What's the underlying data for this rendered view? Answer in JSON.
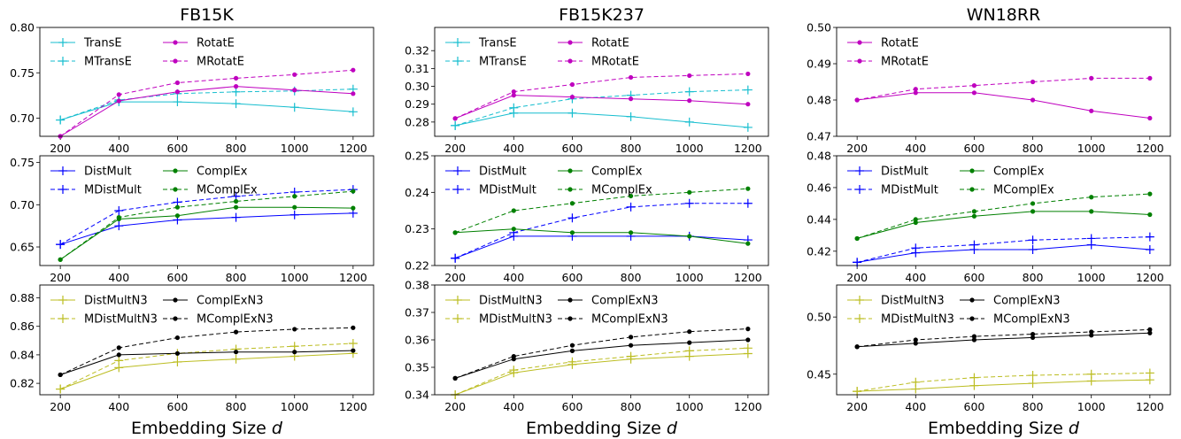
{
  "chart_data": [
    {
      "type": "line",
      "title": "FB15K",
      "xlabel": "",
      "ylabel": "",
      "x": [
        200,
        400,
        600,
        800,
        1000,
        1200
      ],
      "ylim": [
        0.68,
        0.8
      ],
      "yticks": [
        "0.70",
        "0.75",
        "0.80"
      ],
      "ytick_values": [
        0.7,
        0.75,
        0.8
      ],
      "legend_columns": 2,
      "series": [
        {
          "name": "TransE",
          "color": "#17becf",
          "dashed": false,
          "marker": "plus",
          "values": [
            0.698,
            0.718,
            0.718,
            0.716,
            0.712,
            0.707
          ]
        },
        {
          "name": "MTransE",
          "color": "#17becf",
          "dashed": true,
          "marker": "plus",
          "values": [
            0.698,
            0.72,
            0.727,
            0.729,
            0.73,
            0.732
          ]
        },
        {
          "name": "RotatE",
          "color": "#bf00bf",
          "dashed": false,
          "marker": "dot",
          "values": [
            0.68,
            0.719,
            0.729,
            0.735,
            0.731,
            0.727
          ]
        },
        {
          "name": "MRotatE",
          "color": "#bf00bf",
          "dashed": true,
          "marker": "dot",
          "values": [
            0.68,
            0.726,
            0.739,
            0.744,
            0.748,
            0.753
          ]
        }
      ]
    },
    {
      "type": "line",
      "title": "FB15K237",
      "xlabel": "",
      "ylabel": "",
      "x": [
        200,
        400,
        600,
        800,
        1000,
        1200
      ],
      "ylim": [
        0.272,
        0.333
      ],
      "yticks": [
        "0.28",
        "0.29",
        "0.30",
        "0.31",
        "0.32"
      ],
      "ytick_values": [
        0.28,
        0.29,
        0.3,
        0.31,
        0.32
      ],
      "legend_columns": 2,
      "series": [
        {
          "name": "TransE",
          "color": "#17becf",
          "dashed": false,
          "marker": "plus",
          "values": [
            0.278,
            0.285,
            0.285,
            0.283,
            0.28,
            0.277
          ]
        },
        {
          "name": "MTransE",
          "color": "#17becf",
          "dashed": true,
          "marker": "plus",
          "values": [
            0.278,
            0.288,
            0.293,
            0.295,
            0.297,
            0.298
          ]
        },
        {
          "name": "RotatE",
          "color": "#bf00bf",
          "dashed": false,
          "marker": "dot",
          "values": [
            0.282,
            0.295,
            0.294,
            0.293,
            0.292,
            0.29
          ]
        },
        {
          "name": "MRotatE",
          "color": "#bf00bf",
          "dashed": true,
          "marker": "dot",
          "values": [
            0.282,
            0.297,
            0.301,
            0.305,
            0.306,
            0.307
          ]
        }
      ]
    },
    {
      "type": "line",
      "title": "WN18RR",
      "xlabel": "",
      "ylabel": "",
      "x": [
        200,
        400,
        600,
        800,
        1000,
        1200
      ],
      "ylim": [
        0.47,
        0.5
      ],
      "yticks": [
        "0.47",
        "0.48",
        "0.49",
        "0.50"
      ],
      "ytick_values": [
        0.47,
        0.48,
        0.49,
        0.5
      ],
      "legend_columns": 1,
      "series": [
        {
          "name": "RotatE",
          "color": "#bf00bf",
          "dashed": false,
          "marker": "dot",
          "values": [
            0.48,
            0.482,
            0.482,
            0.48,
            0.477,
            0.475
          ]
        },
        {
          "name": "MRotatE",
          "color": "#bf00bf",
          "dashed": true,
          "marker": "dot",
          "values": [
            0.48,
            0.483,
            0.484,
            0.485,
            0.486,
            0.486
          ]
        }
      ]
    },
    {
      "type": "line",
      "title": "",
      "xlabel": "",
      "ylabel": "",
      "x": [
        200,
        400,
        600,
        800,
        1000,
        1200
      ],
      "ylim": [
        0.628,
        0.758
      ],
      "yticks": [
        "0.65",
        "0.70",
        "0.75"
      ],
      "ytick_values": [
        0.65,
        0.7,
        0.75
      ],
      "legend_columns": 2,
      "series": [
        {
          "name": "DistMult",
          "color": "#0000ff",
          "dashed": false,
          "marker": "plus",
          "values": [
            0.653,
            0.675,
            0.682,
            0.685,
            0.688,
            0.69
          ]
        },
        {
          "name": "MDistMult",
          "color": "#0000ff",
          "dashed": true,
          "marker": "plus",
          "values": [
            0.653,
            0.693,
            0.703,
            0.71,
            0.715,
            0.718
          ]
        },
        {
          "name": "ComplEx",
          "color": "#008000",
          "dashed": false,
          "marker": "dot",
          "values": [
            0.635,
            0.683,
            0.687,
            0.697,
            0.697,
            0.696
          ]
        },
        {
          "name": "MComplEx",
          "color": "#008000",
          "dashed": true,
          "marker": "dot",
          "values": [
            0.635,
            0.685,
            0.697,
            0.704,
            0.71,
            0.716
          ]
        }
      ]
    },
    {
      "type": "line",
      "title": "",
      "xlabel": "",
      "ylabel": "",
      "x": [
        200,
        400,
        600,
        800,
        1000,
        1200
      ],
      "ylim": [
        0.22,
        0.25
      ],
      "yticks": [
        "0.22",
        "0.23",
        "0.24",
        "0.25"
      ],
      "ytick_values": [
        0.22,
        0.23,
        0.24,
        0.25
      ],
      "legend_columns": 2,
      "series": [
        {
          "name": "DistMult",
          "color": "#0000ff",
          "dashed": false,
          "marker": "plus",
          "values": [
            0.222,
            0.228,
            0.228,
            0.228,
            0.228,
            0.227
          ]
        },
        {
          "name": "MDistMult",
          "color": "#0000ff",
          "dashed": true,
          "marker": "plus",
          "values": [
            0.222,
            0.229,
            0.233,
            0.236,
            0.237,
            0.237
          ]
        },
        {
          "name": "ComplEx",
          "color": "#008000",
          "dashed": false,
          "marker": "dot",
          "values": [
            0.229,
            0.23,
            0.229,
            0.229,
            0.228,
            0.226
          ]
        },
        {
          "name": "MComplEx",
          "color": "#008000",
          "dashed": true,
          "marker": "dot",
          "values": [
            0.229,
            0.235,
            0.237,
            0.239,
            0.24,
            0.241
          ]
        }
      ]
    },
    {
      "type": "line",
      "title": "",
      "xlabel": "",
      "ylabel": "",
      "x": [
        200,
        400,
        600,
        800,
        1000,
        1200
      ],
      "ylim": [
        0.411,
        0.48
      ],
      "yticks": [
        "0.42",
        "0.44",
        "0.46",
        "0.48"
      ],
      "ytick_values": [
        0.42,
        0.44,
        0.46,
        0.48
      ],
      "legend_columns": 2,
      "series": [
        {
          "name": "DistMult",
          "color": "#0000ff",
          "dashed": false,
          "marker": "plus",
          "values": [
            0.413,
            0.419,
            0.421,
            0.421,
            0.424,
            0.421
          ]
        },
        {
          "name": "MDistMult",
          "color": "#0000ff",
          "dashed": true,
          "marker": "plus",
          "values": [
            0.413,
            0.422,
            0.424,
            0.427,
            0.428,
            0.429
          ]
        },
        {
          "name": "ComplEx",
          "color": "#008000",
          "dashed": false,
          "marker": "dot",
          "values": [
            0.428,
            0.438,
            0.442,
            0.445,
            0.445,
            0.443
          ]
        },
        {
          "name": "MComplEx",
          "color": "#008000",
          "dashed": true,
          "marker": "dot",
          "values": [
            0.428,
            0.44,
            0.445,
            0.45,
            0.454,
            0.456
          ]
        }
      ]
    },
    {
      "type": "line",
      "title": "",
      "xlabel": "Embedding Size d",
      "ylabel": "",
      "x": [
        200,
        400,
        600,
        800,
        1000,
        1200
      ],
      "ylim": [
        0.812,
        0.889
      ],
      "yticks": [
        "0.82",
        "0.84",
        "0.86",
        "0.88"
      ],
      "ytick_values": [
        0.82,
        0.84,
        0.86,
        0.88
      ],
      "legend_columns": 2,
      "series": [
        {
          "name": "DistMultN3",
          "color": "#bcbd22",
          "dashed": false,
          "marker": "plus",
          "values": [
            0.816,
            0.831,
            0.835,
            0.837,
            0.839,
            0.841
          ]
        },
        {
          "name": "MDistMultN3",
          "color": "#bcbd22",
          "dashed": true,
          "marker": "plus",
          "values": [
            0.816,
            0.836,
            0.841,
            0.844,
            0.846,
            0.848
          ]
        },
        {
          "name": "ComplExN3",
          "color": "#000000",
          "dashed": false,
          "marker": "dot",
          "values": [
            0.826,
            0.84,
            0.841,
            0.842,
            0.842,
            0.843
          ]
        },
        {
          "name": "MComplExN3",
          "color": "#000000",
          "dashed": true,
          "marker": "dot",
          "values": [
            0.826,
            0.845,
            0.852,
            0.856,
            0.858,
            0.859
          ]
        }
      ]
    },
    {
      "type": "line",
      "title": "",
      "xlabel": "Embedding Size d",
      "ylabel": "",
      "x": [
        200,
        400,
        600,
        800,
        1000,
        1200
      ],
      "ylim": [
        0.34,
        0.38
      ],
      "yticks": [
        "0.34",
        "0.35",
        "0.36",
        "0.37",
        "0.38"
      ],
      "ytick_values": [
        0.34,
        0.35,
        0.36,
        0.37,
        0.38
      ],
      "legend_columns": 2,
      "series": [
        {
          "name": "DistMultN3",
          "color": "#bcbd22",
          "dashed": false,
          "marker": "plus",
          "values": [
            0.34,
            0.348,
            0.351,
            0.353,
            0.354,
            0.355
          ]
        },
        {
          "name": "MDistMultN3",
          "color": "#bcbd22",
          "dashed": true,
          "marker": "plus",
          "values": [
            0.34,
            0.349,
            0.352,
            0.354,
            0.356,
            0.357
          ]
        },
        {
          "name": "ComplExN3",
          "color": "#000000",
          "dashed": false,
          "marker": "dot",
          "values": [
            0.346,
            0.353,
            0.356,
            0.358,
            0.359,
            0.36
          ]
        },
        {
          "name": "MComplExN3",
          "color": "#000000",
          "dashed": true,
          "marker": "dot",
          "values": [
            0.346,
            0.354,
            0.358,
            0.361,
            0.363,
            0.364
          ]
        }
      ]
    },
    {
      "type": "line",
      "title": "",
      "xlabel": "Embedding Size d",
      "ylabel": "",
      "x": [
        200,
        400,
        600,
        800,
        1000,
        1200
      ],
      "ylim": [
        0.432,
        0.528
      ],
      "yticks": [
        "0.45",
        "0.50"
      ],
      "ytick_values": [
        0.45,
        0.5
      ],
      "legend_columns": 2,
      "series": [
        {
          "name": "DistMultN3",
          "color": "#bcbd22",
          "dashed": false,
          "marker": "plus",
          "values": [
            0.435,
            0.437,
            0.44,
            0.442,
            0.444,
            0.445
          ]
        },
        {
          "name": "MDistMultN3",
          "color": "#bcbd22",
          "dashed": true,
          "marker": "plus",
          "values": [
            0.435,
            0.443,
            0.447,
            0.449,
            0.45,
            0.451
          ]
        },
        {
          "name": "ComplExN3",
          "color": "#000000",
          "dashed": false,
          "marker": "dot",
          "values": [
            0.474,
            0.477,
            0.48,
            0.482,
            0.484,
            0.486
          ]
        },
        {
          "name": "MComplExN3",
          "color": "#000000",
          "dashed": true,
          "marker": "dot",
          "values": [
            0.474,
            0.48,
            0.483,
            0.485,
            0.487,
            0.489
          ]
        }
      ]
    }
  ]
}
